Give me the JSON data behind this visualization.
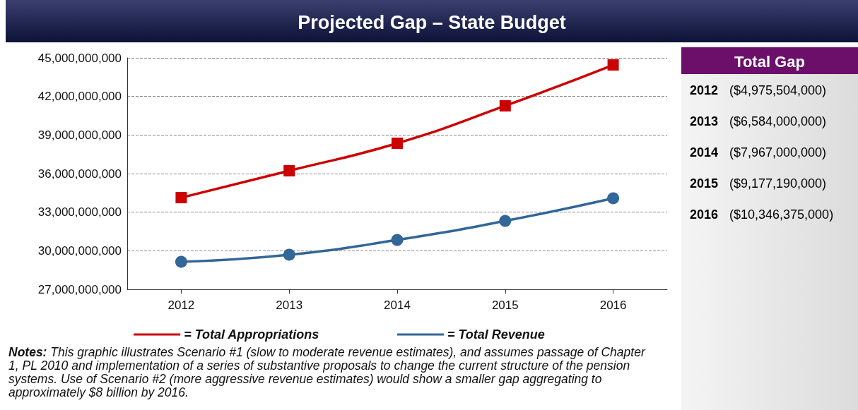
{
  "chart_data": {
    "type": "line",
    "title": "Projected Gap – State Budget",
    "categories": [
      "2012",
      "2013",
      "2014",
      "2015",
      "2016"
    ],
    "series": [
      {
        "name": "= Total Appropriations",
        "color": "#cc0000",
        "marker": "square",
        "values": [
          34130000000,
          36220000000,
          38360000000,
          41270000000,
          44450000000
        ]
      },
      {
        "name": "= Total Revenue",
        "color": "#336699",
        "marker": "circle",
        "values": [
          29140000000,
          29690000000,
          30840000000,
          32320000000,
          34080000000
        ]
      }
    ],
    "ylim": [
      27000000000,
      45000000000
    ],
    "yticks": [
      {
        "value": 27000000000,
        "label": "27,000,000,000"
      },
      {
        "value": 30000000000,
        "label": "30,000,000,000"
      },
      {
        "value": 33000000000,
        "label": "33,000,000,000"
      },
      {
        "value": 36000000000,
        "label": "36,000,000,000"
      },
      {
        "value": 39000000000,
        "label": "39,000,000,000"
      },
      {
        "value": 42000000000,
        "label": "42,000,000,000"
      },
      {
        "value": 45000000000,
        "label": "45,000,000,000"
      }
    ],
    "grid": "y",
    "legend": "bottom",
    "line_style": "solid",
    "annotations": [
      "Total Gap",
      "2012",
      "($4,975,504,000)",
      "2013",
      "($6,584,000,000)",
      "2014",
      "($7,967,000,000)",
      "2015",
      "($9,177,190,000)",
      "2016",
      "($10,346,375,000)",
      "Notes: This graphic illustrates Scenario #1 (slow to moderate revenue estimates), and assumes passage of Chapter 1, PL 2010 and implementation of a series of substantive proposals to change the current structure of the pension systems. Use of Scenario #2 (more aggressive revenue estimates) would show a smaller gap aggregating to approximately $8 billion by 2016."
    ]
  }
}
